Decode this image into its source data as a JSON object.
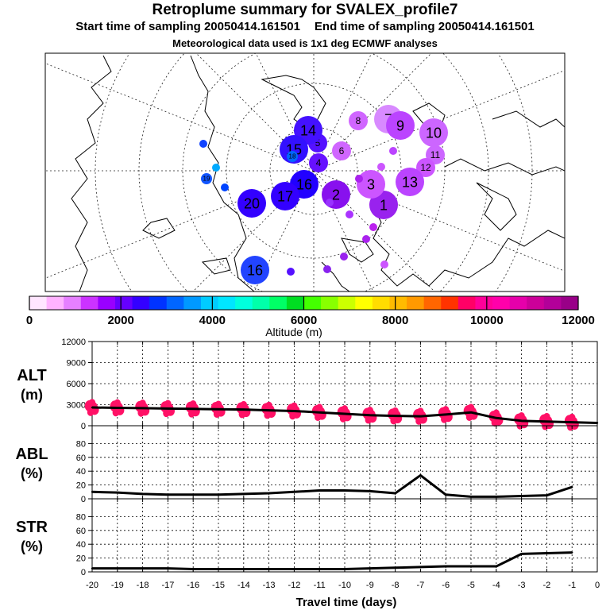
{
  "header": {
    "title": "Retroplume summary for SVALEX_profile7",
    "start_label": "Start time of sampling 20050414.161501",
    "end_label": "End time of sampling 20050414.161501",
    "met_label": "Meteorological data used is 1x1 deg ECMWF analyses"
  },
  "colorbar": {
    "label": "Altitude (m)",
    "ticks": [
      "0",
      "2000",
      "4000",
      "6000",
      "8000",
      "10000",
      "12000"
    ],
    "colors": [
      "#ffe6ff",
      "#ffb3ff",
      "#e680ff",
      "#cc33ff",
      "#9900ff",
      "#6600ff",
      "#3300ff",
      "#0033ff",
      "#0066ff",
      "#0099ff",
      "#00ccff",
      "#00e6ff",
      "#00ffdd",
      "#00ffaa",
      "#00ff66",
      "#00dd22",
      "#44ff00",
      "#88ff00",
      "#ccff00",
      "#ffff00",
      "#ffdd00",
      "#ffbb00",
      "#ff9900",
      "#ff6600",
      "#ff3300",
      "#ff0066",
      "#ff0099",
      "#ff00aa",
      "#e600aa",
      "#cc0099",
      "#b30099",
      "#990088"
    ]
  },
  "map_points": [
    {
      "label": "1",
      "color": "#9922ee",
      "size": "large"
    },
    {
      "label": "2",
      "color": "#8811ee",
      "size": "large"
    },
    {
      "label": "3",
      "color": "#cc55ff",
      "size": "large"
    },
    {
      "label": "4",
      "color": "#6611ff",
      "size": "medium"
    },
    {
      "label": "5",
      "color": "#5511ff",
      "size": "medium"
    },
    {
      "label": "6",
      "color": "#d066ff",
      "size": "medium"
    },
    {
      "label": "7",
      "color": "#d88aff",
      "size": "large"
    },
    {
      "label": "8",
      "color": "#d066ff",
      "size": "medium"
    },
    {
      "label": "9",
      "color": "#bb44ff",
      "size": "large"
    },
    {
      "label": "10",
      "color": "#cc66ff",
      "size": "large"
    },
    {
      "label": "11",
      "color": "#cc66ff",
      "size": "medium"
    },
    {
      "label": "12",
      "color": "#cc55ff",
      "size": "medium"
    },
    {
      "label": "13",
      "color": "#bb44ff",
      "size": "large"
    },
    {
      "label": "14",
      "color": "#4411ff",
      "size": "large"
    },
    {
      "label": "15",
      "color": "#3311ff",
      "size": "large"
    },
    {
      "label": "16",
      "color": "#2200ff",
      "size": "large"
    },
    {
      "label": "17",
      "color": "#3300ff",
      "size": "large"
    },
    {
      "label": "18",
      "color": "#0066ff",
      "size": "small"
    },
    {
      "label": "19",
      "color": "#1155ff",
      "size": "small"
    },
    {
      "label": "20",
      "color": "#3300ff",
      "size": "large"
    },
    {
      "label": "16",
      "color": "#2244ff",
      "size": "large"
    }
  ],
  "chart_data": [
    {
      "type": "line",
      "panel_label": "ALT",
      "unit_label": "(m)",
      "x": [
        -20,
        -19,
        -18,
        -17,
        -16,
        -15,
        -14,
        -13,
        -12,
        -11,
        -10,
        -9,
        -8,
        -7,
        -6,
        -5,
        -4,
        -3,
        -2,
        -1,
        0
      ],
      "y": [
        2600,
        2550,
        2500,
        2450,
        2400,
        2350,
        2300,
        2200,
        2100,
        1900,
        1700,
        1500,
        1400,
        1350,
        1600,
        1900,
        1100,
        700,
        600,
        500,
        400
      ],
      "ylim": [
        0,
        12000
      ],
      "yticks": [
        "0",
        "3000",
        "6000",
        "9000",
        "12000"
      ],
      "scatter": "individual particle altitudes (red)"
    },
    {
      "type": "line",
      "panel_label": "ABL",
      "unit_label": "(%)",
      "x": [
        -20,
        -19,
        -18,
        -17,
        -16,
        -15,
        -14,
        -13,
        -12,
        -11,
        -10,
        -9,
        -8,
        -7,
        -6,
        -5,
        -4,
        -3,
        -2,
        -1
      ],
      "y": [
        10,
        9,
        7,
        6,
        6,
        6,
        7,
        8,
        10,
        12,
        12,
        11,
        8,
        34,
        6,
        3,
        3,
        4,
        5,
        17
      ],
      "ylim": [
        0,
        100
      ],
      "yticks": [
        "0",
        "20",
        "40",
        "60",
        "80"
      ]
    },
    {
      "type": "line",
      "panel_label": "STR",
      "unit_label": "(%)",
      "x": [
        -20,
        -19,
        -18,
        -17,
        -16,
        -15,
        -14,
        -13,
        -12,
        -11,
        -10,
        -9,
        -8,
        -7,
        -6,
        -5,
        -4,
        -3,
        -2,
        -1
      ],
      "y": [
        5,
        5,
        5,
        5,
        4,
        4,
        4,
        4,
        4,
        4,
        4,
        5,
        6,
        7,
        8,
        8,
        8,
        26,
        27,
        28
      ],
      "ylim": [
        0,
        100
      ],
      "yticks": [
        "0",
        "20",
        "40",
        "60",
        "80"
      ]
    }
  ],
  "xaxis": {
    "label": "Travel time (days)",
    "ticks": [
      "-20",
      "-19",
      "-18",
      "-17",
      "-16",
      "-15",
      "-14",
      "-13",
      "-12",
      "-11",
      "-10",
      "-9",
      "-8",
      "-7",
      "-6",
      "-5",
      "-4",
      "-3",
      "-2",
      "-1",
      "0"
    ]
  }
}
